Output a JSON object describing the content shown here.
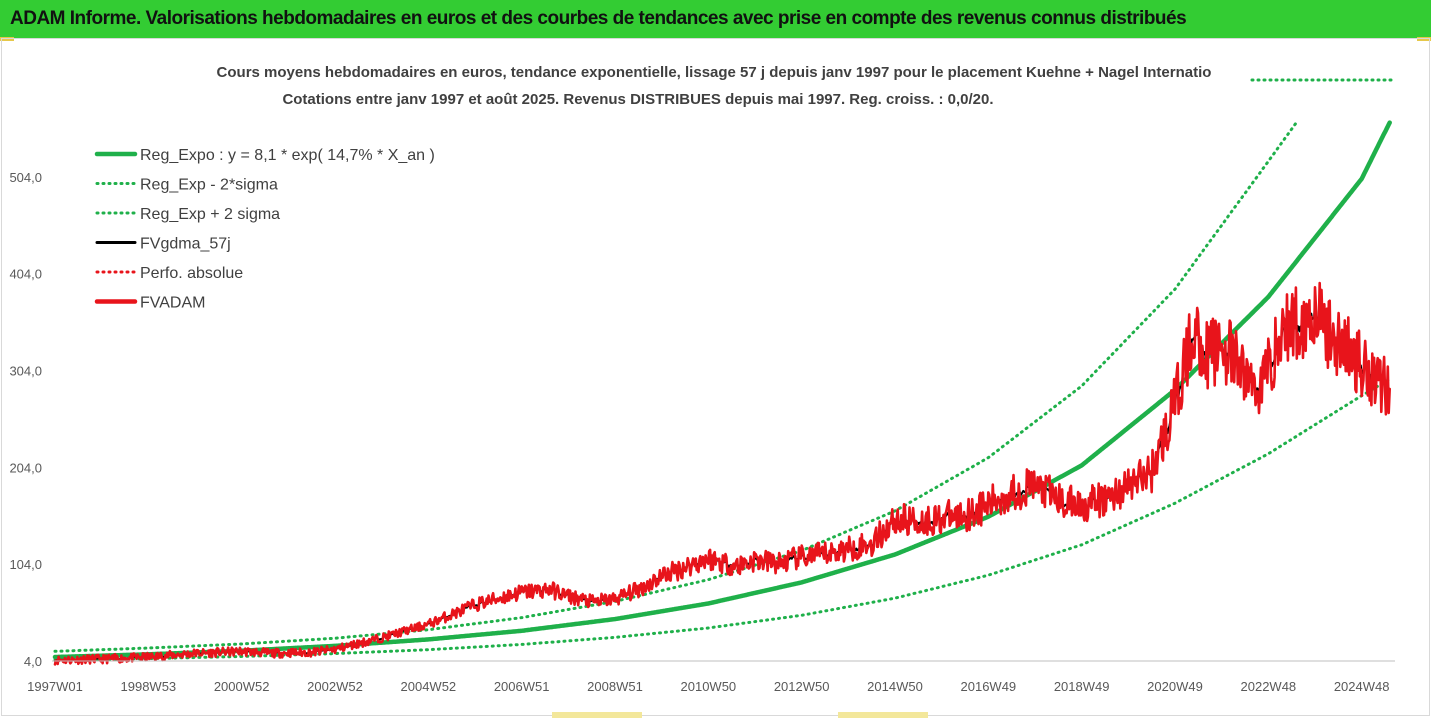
{
  "banner": {
    "title": "ADAM Informe. Valorisations hebdomadaires en euros et des courbes de tendances avec prise en compte des revenus connus distribués"
  },
  "colors": {
    "banner": "#33cc33",
    "reg_expo": "#1fb04a",
    "reg_bands": "#1fb04a",
    "fvgdma": "#000000",
    "perfo": "#e8141b",
    "fvadam": "#e8141b"
  },
  "chart_data": {
    "type": "line",
    "title": "Cours moyens hebdomadaires en euros, tendance exponentielle, lissage 57 j depuis janv 1997 pour le placement Kuehne + Nagel Internatio",
    "subtitle": "Cotations entre janv 1997 et août 2025. Revenus DISTRIBUES depuis mai 1997. Reg. croiss. : 0,0/20.",
    "xlabel": "",
    "ylabel": "",
    "ylim": [
      4,
      604
    ],
    "xlim": [
      1997.0,
      2025.65
    ],
    "grid": false,
    "legend_position": "top-left",
    "y_ticks": [
      "4,0",
      "104,0",
      "204,0",
      "304,0",
      "404,0",
      "504,0"
    ],
    "y_tick_values": [
      4,
      104,
      204,
      304,
      404,
      504
    ],
    "x_ticks": [
      "1997W01",
      "1998W53",
      "2000W52",
      "2002W52",
      "2004W52",
      "2006W51",
      "2008W51",
      "2010W50",
      "2012W50",
      "2014W50",
      "2016W49",
      "2018W49",
      "2020W49",
      "2022W48",
      "2024W48"
    ],
    "x_tick_values": [
      1997.0,
      1999.0,
      2001.0,
      2003.0,
      2005.0,
      2007.0,
      2009.0,
      2011.0,
      2013.0,
      2015.0,
      2017.0,
      2019.0,
      2021.0,
      2023.0,
      2025.0
    ],
    "legend": [
      {
        "label": "Reg_Expo : y = 8,1 * exp( 14,7% *  X_an )",
        "style": "solid-thick",
        "color": "#1fb04a"
      },
      {
        "label": "Reg_Exp - 2*sigma",
        "style": "dotted",
        "color": "#1fb04a"
      },
      {
        "label": "Reg_Exp + 2 sigma",
        "style": "dotted",
        "color": "#1fb04a"
      },
      {
        "label": "FVgdma_57j",
        "style": "solid",
        "color": "#000000"
      },
      {
        "label": "Perfo. absolue",
        "style": "dotted",
        "color": "#e8141b"
      },
      {
        "label": "FVADAM",
        "style": "solid-thick",
        "color": "#e8141b"
      }
    ],
    "series": [
      {
        "name": "Reg_Expo : y = 8,1 * exp( 14,7% *  X_an )",
        "x": [
          1997,
          1999,
          2001,
          2003,
          2005,
          2007,
          2009,
          2011,
          2013,
          2015,
          2017,
          2019,
          2021,
          2023,
          2025,
          2025.6
        ],
        "values": [
          8.1,
          10.9,
          14.6,
          19.6,
          26.3,
          35.2,
          47.3,
          63.4,
          85.2,
          114,
          153,
          206,
          284,
          380,
          502,
          560
        ]
      },
      {
        "name": "Reg_Exp - 2*sigma",
        "x": [
          1997,
          1999,
          2001,
          2003,
          2005,
          2007,
          2009,
          2011,
          2013,
          2015,
          2017,
          2019,
          2021,
          2023,
          2025,
          2025.6
        ],
        "values": [
          5,
          6.5,
          8.7,
          11.7,
          15.7,
          21.1,
          28.4,
          38.1,
          51.2,
          68.9,
          92.6,
          124,
          167,
          218,
          278,
          295
        ]
      },
      {
        "name": "Reg_Exp + 2 sigma",
        "x": [
          1997,
          1999,
          2001,
          2003,
          2005,
          2007,
          2009,
          2011,
          2013,
          2015,
          2017,
          2019,
          2021,
          2023,
          2023.6
        ],
        "values": [
          14,
          17.4,
          21.6,
          27.5,
          36.3,
          48.8,
          65.6,
          88,
          118,
          159,
          214,
          288,
          388,
          520,
          560
        ]
      },
      {
        "name": "FVgdma_57j",
        "x": [
          1997,
          1998,
          1999,
          2000,
          2001,
          2001.7,
          2002.5,
          2003,
          2004,
          2005,
          2006,
          2006.6,
          2007,
          2007.6,
          2008,
          2008.5,
          2009,
          2009.6,
          2010,
          2011,
          2011.6,
          2012,
          2012.5,
          2013,
          2013.6,
          2014,
          2014.5,
          2015,
          2015.6,
          2016,
          2016.5,
          2017,
          2017.5,
          2018,
          2018.6,
          2019,
          2019.5,
          2020,
          2020.5,
          2020.8,
          2021,
          2021.4,
          2021.7,
          2022,
          2022.5,
          2022.8,
          2023,
          2023.4,
          2023.8,
          2024,
          2024.2,
          2024.6,
          2025,
          2025.4,
          2025.6
        ],
        "values": [
          5,
          6,
          8,
          12,
          14,
          12,
          13,
          16,
          28,
          42,
          62,
          70,
          75,
          78,
          71,
          65,
          68,
          80,
          92,
          110,
          102,
          108,
          105,
          111,
          115,
          120,
          125,
          150,
          148,
          152,
          155,
          165,
          178,
          185,
          168,
          165,
          170,
          185,
          200,
          240,
          270,
          345,
          320,
          330,
          300,
          285,
          310,
          350,
          355,
          370,
          345,
          330,
          310,
          295,
          285
        ]
      },
      {
        "name": "FVADAM",
        "x": [
          1997,
          1998,
          1999,
          2000,
          2001,
          2001.7,
          2002.5,
          2003,
          2004,
          2005,
          2006,
          2006.6,
          2007,
          2007.6,
          2008,
          2008.5,
          2009,
          2009.6,
          2010,
          2011,
          2011.6,
          2012,
          2012.5,
          2013,
          2013.6,
          2014,
          2014.5,
          2015,
          2015.6,
          2016,
          2016.5,
          2017,
          2017.5,
          2018,
          2018.6,
          2019,
          2019.5,
          2020,
          2020.5,
          2020.8,
          2021,
          2021.4,
          2021.7,
          2022,
          2022.5,
          2022.8,
          2023,
          2023.4,
          2023.8,
          2024,
          2024.2,
          2024.6,
          2025,
          2025.4,
          2025.6
        ],
        "values": [
          5,
          6,
          8,
          12,
          14,
          12,
          13,
          16,
          28,
          42,
          62,
          70,
          75,
          78,
          71,
          65,
          68,
          80,
          92,
          110,
          102,
          108,
          105,
          111,
          115,
          120,
          125,
          150,
          148,
          152,
          155,
          165,
          178,
          185,
          168,
          165,
          170,
          185,
          200,
          240,
          270,
          345,
          320,
          330,
          300,
          285,
          310,
          350,
          355,
          370,
          345,
          330,
          310,
          295,
          285
        ]
      }
    ]
  }
}
